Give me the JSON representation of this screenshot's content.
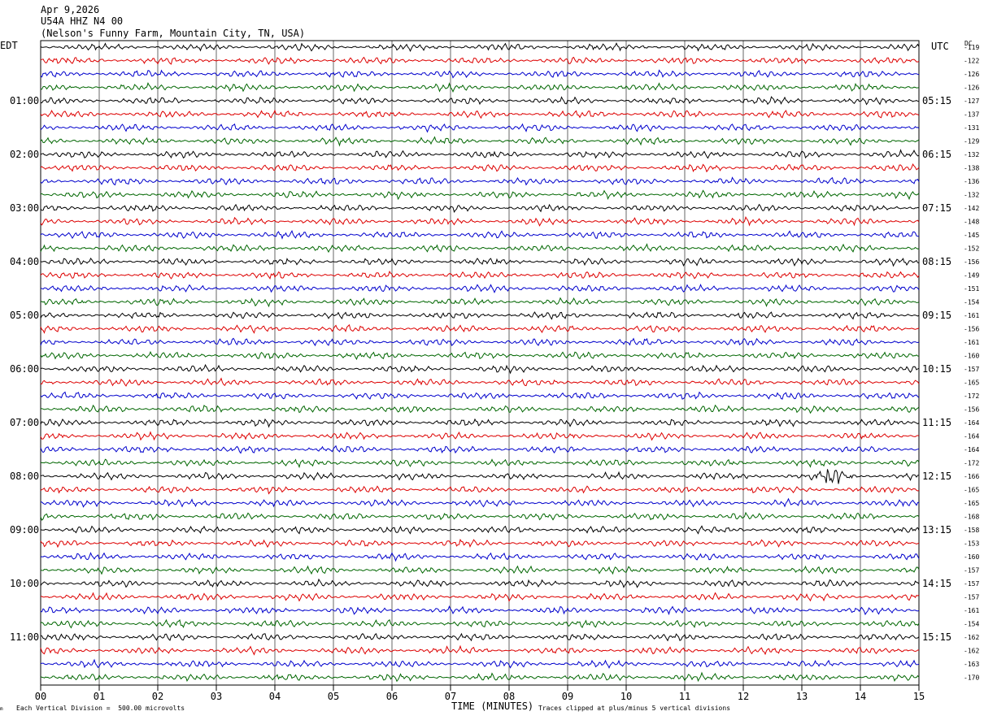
{
  "header": {
    "date": "Apr 9,2026",
    "station": "U54A HHZ N4 00",
    "site": "(Nelson's Funny Farm, Mountain City, TN, USA)"
  },
  "left_zone": "EDT",
  "right_zone": "UTC",
  "dc_label": "DC",
  "footer": {
    "xlabel": "TIME (MINUTES)",
    "scale_note": "Each Vertical Division =  500.00 microvolts",
    "clip_note": "Traces clipped at plus/minus 5 vertical divisions"
  },
  "colors": {
    "series": [
      "#000000",
      "#dd0000",
      "#0000cc",
      "#006600"
    ],
    "grid": "#000000"
  },
  "chart_data": {
    "type": "line",
    "description_type": "helicorder",
    "xlim": [
      0,
      15
    ],
    "x_ticks": [
      "00",
      "01",
      "02",
      "03",
      "04",
      "05",
      "06",
      "07",
      "08",
      "09",
      "10",
      "11",
      "12",
      "13",
      "14",
      "15"
    ],
    "row_minutes": 15,
    "rows": 48,
    "left_hour_labels": [
      "01:00",
      "02:00",
      "03:00",
      "04:00",
      "05:00",
      "06:00",
      "07:00",
      "08:00",
      "09:00",
      "10:00",
      "11:00"
    ],
    "right_hour_labels": [
      "05:15",
      "06:15",
      "07:15",
      "08:15",
      "09:15",
      "10:15",
      "11:15",
      "12:15",
      "13:15",
      "14:15",
      "15:15"
    ],
    "hour_label_rows": [
      4,
      8,
      12,
      16,
      20,
      24,
      28,
      32,
      36,
      40,
      44
    ],
    "dc_offsets": [
      -119,
      -122,
      -126,
      -126,
      -127,
      -137,
      -131,
      -129,
      -132,
      -138,
      -136,
      -132,
      -142,
      -148,
      -145,
      -152,
      -156,
      -149,
      -151,
      -154,
      -161,
      -156,
      -161,
      -160,
      -157,
      -165,
      -172,
      -156,
      -164,
      -164,
      -164,
      -172,
      -166,
      -165,
      -165,
      -168,
      -158,
      -153,
      -160,
      -157,
      -157,
      -157,
      -161,
      -154,
      -162,
      -162,
      -163,
      -170
    ],
    "events": [
      {
        "row": 32,
        "start_min": 13.1,
        "end_min": 13.9,
        "amplitude": 3.4
      },
      {
        "row": 33,
        "start_min": 11.5,
        "end_min": 12.5,
        "amplitude": 1.2
      }
    ]
  }
}
